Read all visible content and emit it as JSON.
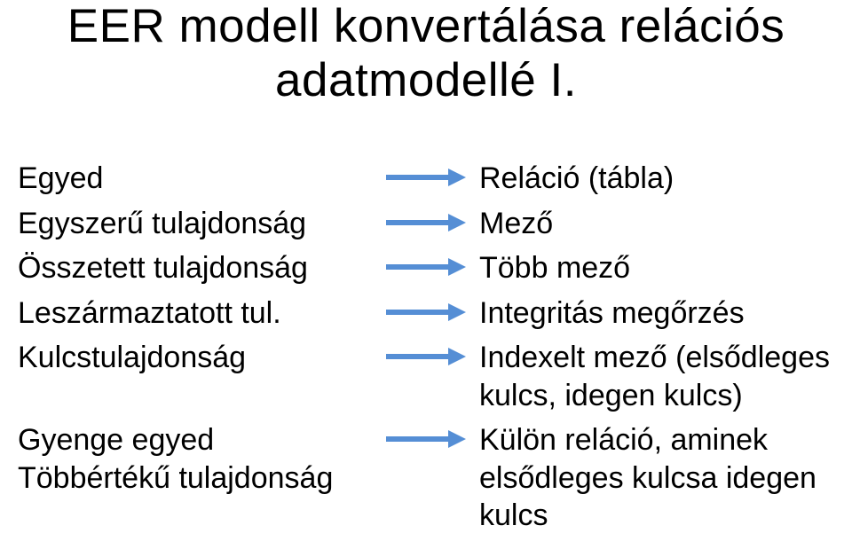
{
  "title_line1": "EER modell konvertálása relációs",
  "title_line2": "adatmodellé I.",
  "arrow_color": "#558ed5",
  "text_color": "#000000",
  "background_color": "#ffffff",
  "title_fontsize": 53,
  "body_fontsize": 34,
  "rows": [
    {
      "left": "Egyed",
      "right": "Reláció (tábla)"
    },
    {
      "left": "Egyszerű tulajdonság",
      "right": "Mező"
    },
    {
      "left": "Összetett tulajdonság",
      "right": "Több mező"
    },
    {
      "left": "Leszármaztatott tul.",
      "right": "Integritás megőrzés"
    },
    {
      "left": "Kulcstulajdonság",
      "right": "Indexelt mező (elsődleges kulcs, idegen kulcs)"
    },
    {
      "left": "Gyenge egyed\nTöbbértékű tulajdonság",
      "right": "Külön reláció, aminek elsődleges kulcsa idegen kulcs"
    }
  ]
}
